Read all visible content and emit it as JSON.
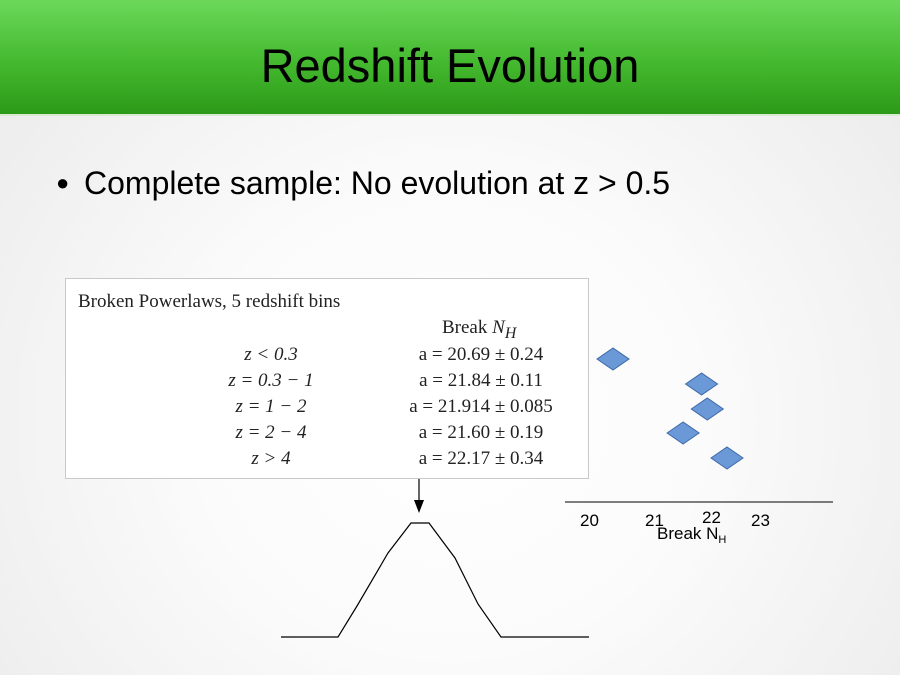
{
  "slide": {
    "title": "Redshift Evolution",
    "bullet": "Complete sample: No evolution at z > 0.5"
  },
  "table": {
    "caption": "Broken Powerlaws, 5 redshift bins",
    "column_header_prefix": "Break ",
    "column_header_var": "N",
    "column_header_sub": "H",
    "rows": [
      {
        "z": "z < 0.3",
        "a": "a = 20.69 ± 0.24"
      },
      {
        "z": "z = 0.3 − 1",
        "a": "a = 21.84 ± 0.11"
      },
      {
        "z": "z = 1 − 2",
        "a": "a = 21.914 ± 0.085"
      },
      {
        "z": "z = 2 − 4",
        "a": "a = 21.60 ± 0.19"
      },
      {
        "z": "z > 4",
        "a": "a = 22.17 ± 0.34"
      }
    ]
  },
  "plot": {
    "x_ticks": [
      "20",
      "21",
      "22",
      "23"
    ],
    "x_label_main": "Break N",
    "x_label_sub": "H",
    "marker_color": "#6b98d6",
    "points": [
      20.69,
      21.84,
      21.914,
      21.6,
      22.17
    ]
  }
}
